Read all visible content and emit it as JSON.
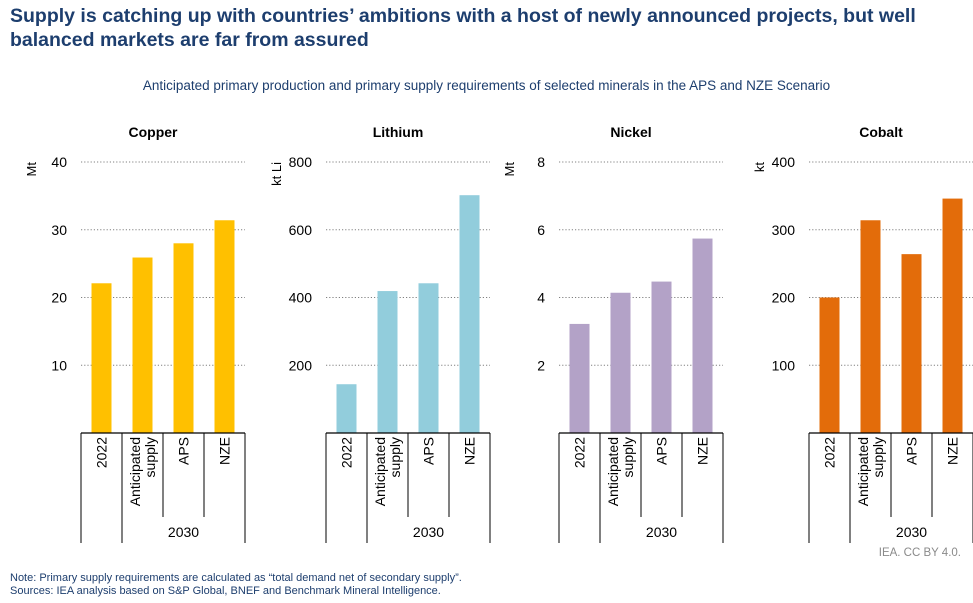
{
  "title": "Supply is catching up with countries’ ambitions with a host of newly announced projects, but well balanced markets are far from assured",
  "subtitle": "Anticipated primary production and primary supply requirements of selected minerals in the APS and NZE Scenario",
  "credit": "IEA. CC BY 4.0.",
  "note": "Note: Primary supply requirements are calculated as “total demand net of secondary supply”.",
  "sources": "Sources: IEA analysis based on S&P Global, BNEF and Benchmark Mineral Intelligence.",
  "chart_data": [
    {
      "type": "bar",
      "title": "Copper",
      "ylabel": "Mt",
      "ylim": [
        0,
        40
      ],
      "yticks": [
        10,
        20,
        30,
        40
      ],
      "grid": true,
      "color": "#ffc000",
      "categories": [
        "2022",
        "Anticipated supply",
        "APS",
        "NZE"
      ],
      "group_label": "2030",
      "values": [
        22.1,
        25.9,
        28.0,
        31.4
      ]
    },
    {
      "type": "bar",
      "title": "Lithium",
      "ylabel": "kt Li",
      "ylim": [
        0,
        800
      ],
      "yticks": [
        200,
        400,
        600,
        800
      ],
      "grid": true,
      "color": "#92cddc",
      "categories": [
        "2022",
        "Anticipated supply",
        "APS",
        "NZE"
      ],
      "group_label": "2030",
      "values": [
        144,
        419,
        442,
        702
      ]
    },
    {
      "type": "bar",
      "title": "Nickel",
      "ylabel": "Mt",
      "ylim": [
        0,
        8
      ],
      "yticks": [
        2,
        4,
        6,
        8
      ],
      "grid": true,
      "color": "#b3a2c7",
      "categories": [
        "2022",
        "Anticipated supply",
        "APS",
        "NZE"
      ],
      "group_label": "2030",
      "values": [
        3.22,
        4.14,
        4.47,
        5.74
      ]
    },
    {
      "type": "bar",
      "title": "Cobalt",
      "ylabel": "kt",
      "ylim": [
        0,
        400
      ],
      "yticks": [
        100,
        200,
        300,
        400
      ],
      "grid": true,
      "color": "#e36c0a",
      "categories": [
        "2022",
        "Anticipated supply",
        "APS",
        "NZE"
      ],
      "group_label": "2030",
      "values": [
        200,
        314,
        264,
        346
      ]
    }
  ]
}
